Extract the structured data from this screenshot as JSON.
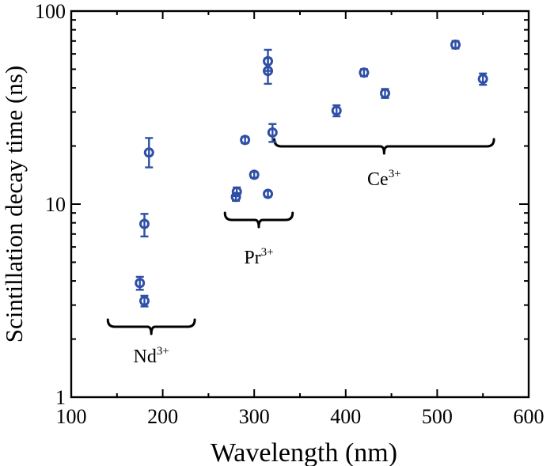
{
  "chart_data": {
    "type": "scatter",
    "xlabel": "Wavelength (nm)",
    "ylabel": "Scintillation decay time (ns)",
    "xlim": [
      100,
      600
    ],
    "ylim": [
      1,
      100
    ],
    "yscale": "log",
    "xticks": [
      100,
      200,
      300,
      400,
      500,
      600
    ],
    "xtick_labels": [
      "100",
      "200",
      "300",
      "400",
      "500",
      "600"
    ],
    "yticks": [
      1,
      10,
      100
    ],
    "ytick_labels": [
      "1",
      "10",
      "100"
    ],
    "colors": {
      "series": "#2f4fa6",
      "axis": "#000000"
    },
    "groups": [
      {
        "name": "Nd",
        "superscript": "3+",
        "range": [
          140,
          235
        ],
        "points": [
          {
            "x": 175,
            "y": 3.9,
            "err": [
              0.3,
              0.3
            ]
          },
          {
            "x": 180,
            "y": 3.15,
            "err": [
              0.2,
              0.2
            ]
          },
          {
            "x": 180,
            "y": 7.9,
            "err": [
              1.1,
              1.0
            ]
          },
          {
            "x": 185,
            "y": 18.5,
            "err": [
              3.0,
              3.5
            ]
          }
        ]
      },
      {
        "name": "Pr",
        "superscript": "3+",
        "range": [
          268,
          342
        ],
        "points": [
          {
            "x": 280,
            "y": 10.9,
            "err": [
              0.5,
              0.5
            ]
          },
          {
            "x": 281,
            "y": 11.6,
            "err": [
              0.6,
              0.6
            ]
          },
          {
            "x": 290,
            "y": 21.5,
            "err": [
              0.8,
              0.8
            ]
          },
          {
            "x": 300,
            "y": 14.2,
            "err": [
              0.5,
              0.5
            ]
          },
          {
            "x": 315,
            "y": 11.3,
            "err": [
              0.4,
              0.4
            ]
          },
          {
            "x": 315,
            "y": 49.0,
            "err": [
              7.0,
              8.0
            ]
          },
          {
            "x": 315,
            "y": 55.0,
            "err": [
              6.0,
              8.0
            ]
          },
          {
            "x": 320,
            "y": 23.5,
            "err": [
              2.5,
              2.5
            ]
          }
        ]
      },
      {
        "name": "Ce",
        "superscript": "3+",
        "range": [
          322,
          562
        ],
        "points": [
          {
            "x": 390,
            "y": 30.5,
            "err": [
              2.0,
              2.0
            ]
          },
          {
            "x": 420,
            "y": 48.0,
            "err": [
              2.0,
              2.0
            ]
          },
          {
            "x": 443,
            "y": 37.5,
            "err": [
              2.0,
              2.0
            ]
          },
          {
            "x": 520,
            "y": 67.0,
            "err": [
              3.0,
              3.0
            ]
          },
          {
            "x": 550,
            "y": 44.5,
            "err": [
              3.0,
              3.0
            ]
          }
        ]
      }
    ]
  }
}
